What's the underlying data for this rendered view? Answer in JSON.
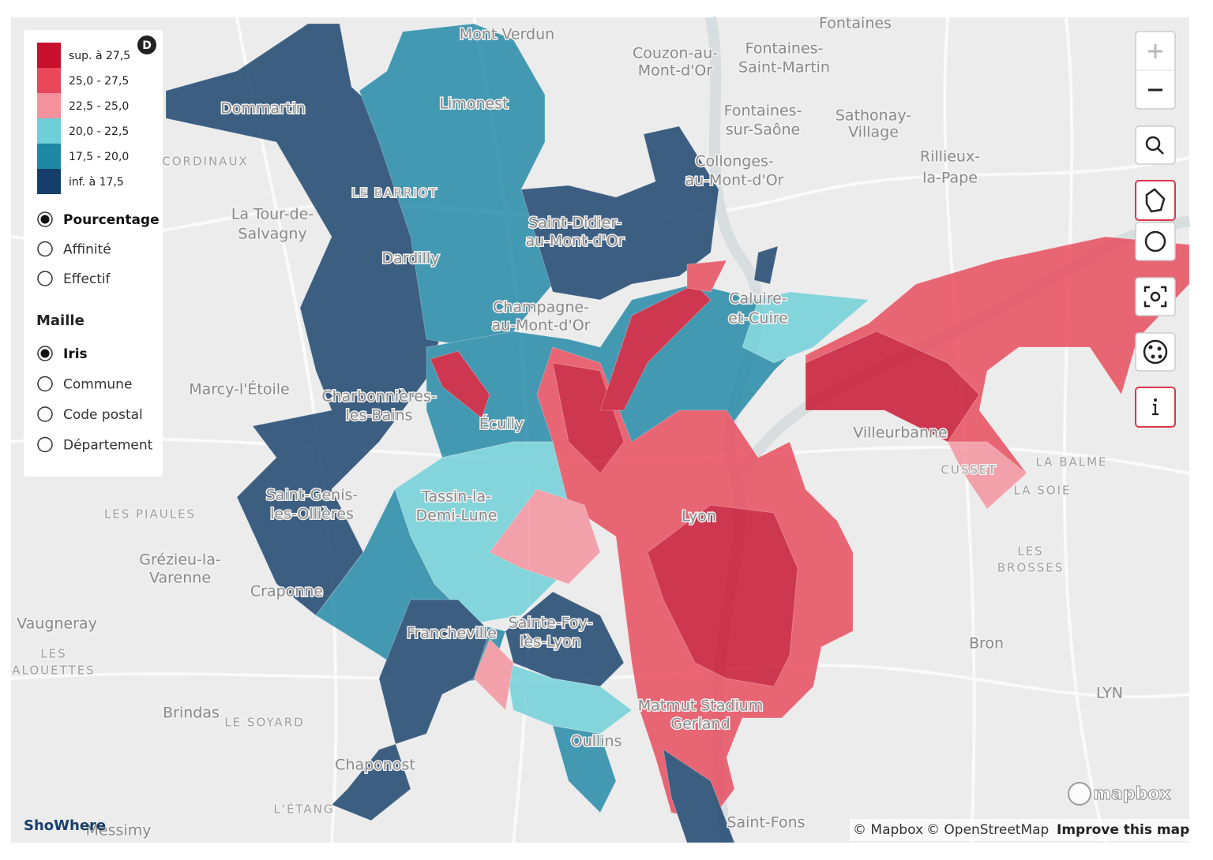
{
  "legend": {
    "badge": "D",
    "classes": [
      {
        "label": "sup. à 27,5",
        "color": "#c8102e"
      },
      {
        "label": "25,0 - 27,5",
        "color": "#e8485a"
      },
      {
        "label": "22,5 - 25,0",
        "color": "#f4919c"
      },
      {
        "label": "20,0 - 22,5",
        "color": "#6ecfd8"
      },
      {
        "label": "17,5 - 20,0",
        "color": "#1f88a5"
      },
      {
        "label": "inf. à 17,5",
        "color": "#153f6a"
      }
    ]
  },
  "measure_options": [
    {
      "label": "Pourcentage",
      "selected": true
    },
    {
      "label": "Affinité",
      "selected": false
    },
    {
      "label": "Effectif",
      "selected": false
    }
  ],
  "grid_title": "Maille",
  "grid_options": [
    {
      "label": "Iris",
      "selected": true
    },
    {
      "label": "Commune",
      "selected": false
    },
    {
      "label": "Code postal",
      "selected": false
    },
    {
      "label": "Département",
      "selected": false
    }
  ],
  "place_labels": [
    "Mont Verdun",
    "Fontaines",
    "Couzon-au-",
    "Mont-d'Or",
    "Fontaines-",
    "Saint-Martin",
    "Dommartin",
    "Limonest",
    "Fontaines-",
    "sur-Saône",
    "Sathonay-",
    "Village",
    "Rillieux-",
    "la-Pape",
    "CORDINAUX",
    "Collonges-",
    "au-Mont-d'Or",
    "LE BARRIOT",
    "La Tour-de-",
    "Salvagny",
    "Saint-Didier-",
    "au-Mont-d'Or",
    "Dardilly",
    "Caluire-",
    "et-Cuire",
    "Champagne-",
    "au-Mont-d'Or",
    "Marcy-l'Étoile",
    "Charbonnières-",
    "les-Bains",
    "Écully",
    "Villeurbanne",
    "LA BALME",
    "CUSSET",
    "LA SOIE",
    "LES PIAULES",
    "Saint-Genis-",
    "les-Ollières",
    "Tassin-la-",
    "Demi-Lune",
    "Lyon",
    "LES",
    "BROSSES",
    "Grézieu-la-",
    "Varenne",
    "Craponne",
    "Vaugneray",
    "Francheville",
    "Sainte-Foy-",
    "lès-Lyon",
    "Bron",
    "LES",
    "ALOUETTES",
    "LYN",
    "Brindas",
    "LE SOYARD",
    "Matmut Stadium",
    "Gerland",
    "Oullins",
    "Chaponost",
    "L'ÉTANG",
    "Saint-Fons",
    "Messimy"
  ],
  "brand": "ShoWhere",
  "mapbox_logo": "mapbox",
  "attribution": {
    "mapbox": "© Mapbox",
    "osm": "© OpenStreetMap",
    "improve": "Improve this map"
  }
}
